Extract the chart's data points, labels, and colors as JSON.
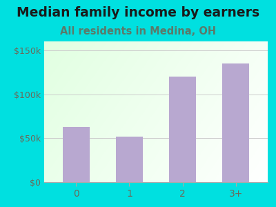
{
  "title": "Median family income by earners",
  "subtitle": "All residents in Medina, OH",
  "categories": [
    "0",
    "1",
    "2",
    "3+"
  ],
  "values": [
    63000,
    52000,
    120000,
    135000
  ],
  "bar_color": "#b8a8d0",
  "bg_outer_color": "#00e0e0",
  "yticks": [
    0,
    50000,
    100000,
    150000
  ],
  "ytick_labels": [
    "$0",
    "$50k",
    "$100k",
    "$150k"
  ],
  "ylim": [
    0,
    160000
  ],
  "title_fontsize": 13.5,
  "subtitle_fontsize": 10.5,
  "title_color": "#1a1a1a",
  "subtitle_color": "#5a7a6a",
  "tick_color": "#6a6a5a"
}
